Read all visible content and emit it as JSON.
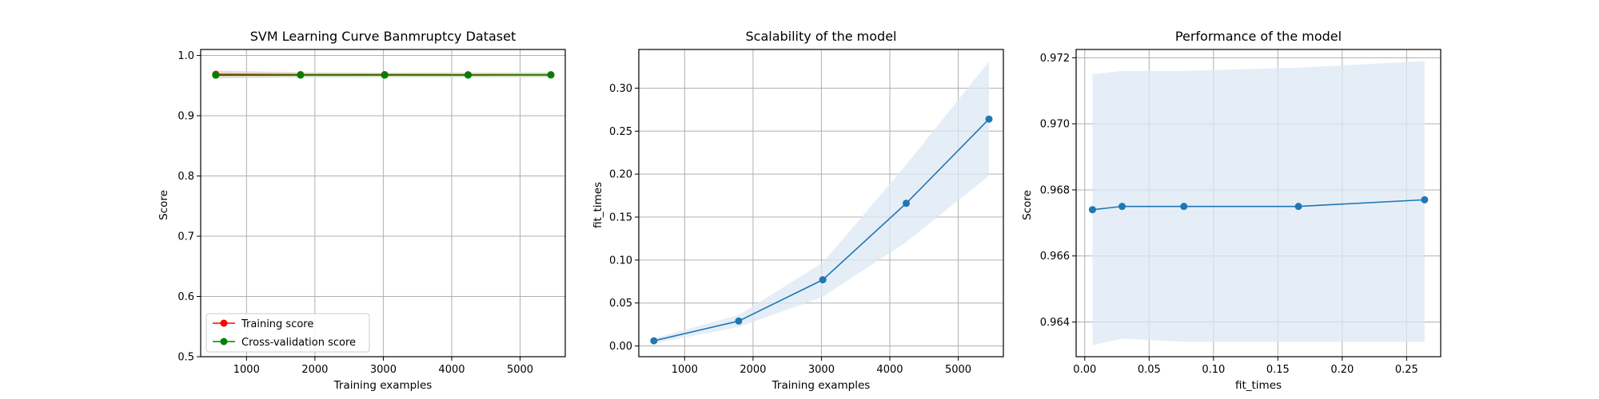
{
  "colors": {
    "training": "#ff0000",
    "cv": "#008000",
    "blue": "#1f77b4",
    "band_blue": "#dce8f4",
    "band_red": "#f7c8c8",
    "band_green": "#c4e3c4"
  },
  "chart_data": [
    {
      "type": "line",
      "title": "SVM Learning Curve Banmruptcy Dataset",
      "xlabel": "Training examples",
      "ylabel": "Score",
      "xlim": [
        330,
        5660
      ],
      "ylim": [
        0.5,
        1.01
      ],
      "xticks": [
        1000,
        2000,
        3000,
        4000,
        5000
      ],
      "xtick_labels": [
        "1000",
        "2000",
        "3000",
        "4000",
        "5000"
      ],
      "yticks": [
        0.5,
        0.6,
        0.7,
        0.8,
        0.9,
        1.0
      ],
      "ytick_labels": [
        "0.5",
        "0.6",
        "0.7",
        "0.8",
        "0.9",
        "1.0"
      ],
      "grid": true,
      "legend": "lower-left",
      "x": [
        550,
        1790,
        3020,
        4240,
        5450
      ],
      "series": [
        {
          "name": "Training score",
          "color": "training",
          "values": [
            0.9687,
            0.9682,
            0.9682,
            0.9681,
            0.9681
          ],
          "band_lower": [
            0.962,
            0.964,
            0.965,
            0.965,
            0.965
          ],
          "band_upper": [
            0.975,
            0.972,
            0.971,
            0.971,
            0.971
          ],
          "band_color": "band_red"
        },
        {
          "name": "Cross-validation score",
          "color": "cv",
          "values": [
            0.9674,
            0.9675,
            0.9675,
            0.9675,
            0.9677
          ],
          "band_lower": [
            0.9633,
            0.9635,
            0.9634,
            0.9634,
            0.9634
          ],
          "band_upper": [
            0.9715,
            0.9716,
            0.9716,
            0.9717,
            0.9719
          ],
          "band_color": "band_green"
        }
      ]
    },
    {
      "type": "line",
      "title": "Scalability of the model",
      "xlabel": "Training examples",
      "ylabel": "fit_times",
      "xlim": [
        330,
        5660
      ],
      "ylim": [
        -0.0125,
        0.345
      ],
      "xticks": [
        1000,
        2000,
        3000,
        4000,
        5000
      ],
      "xtick_labels": [
        "1000",
        "2000",
        "3000",
        "4000",
        "5000"
      ],
      "yticks": [
        0.0,
        0.05,
        0.1,
        0.15,
        0.2,
        0.25,
        0.3
      ],
      "ytick_labels": [
        "0.00",
        "0.05",
        "0.10",
        "0.15",
        "0.20",
        "0.25",
        "0.30"
      ],
      "grid": true,
      "x": [
        550,
        1790,
        3020,
        4240,
        5450
      ],
      "series": [
        {
          "color": "blue",
          "values": [
            0.006,
            0.029,
            0.077,
            0.166,
            0.264
          ],
          "band_lower": [
            0.003,
            0.022,
            0.057,
            0.121,
            0.198
          ],
          "band_upper": [
            0.009,
            0.036,
            0.097,
            0.211,
            0.331
          ],
          "band_color": "band_blue"
        }
      ]
    },
    {
      "type": "line",
      "title": "Performance of the model",
      "xlabel": "fit_times",
      "ylabel": "Score",
      "xlim": [
        -0.0067,
        0.2765
      ],
      "ylim": [
        0.96295,
        0.97225
      ],
      "xticks": [
        0.0,
        0.05,
        0.1,
        0.15,
        0.2,
        0.25
      ],
      "xtick_labels": [
        "0.00",
        "0.05",
        "0.10",
        "0.15",
        "0.20",
        "0.25"
      ],
      "yticks": [
        0.964,
        0.966,
        0.968,
        0.97,
        0.972
      ],
      "ytick_labels": [
        "0.964",
        "0.966",
        "0.968",
        "0.970",
        "0.972"
      ],
      "grid": true,
      "x": [
        0.006,
        0.029,
        0.077,
        0.166,
        0.264
      ],
      "series": [
        {
          "color": "blue",
          "values": [
            0.9674,
            0.9675,
            0.9675,
            0.9675,
            0.9677
          ],
          "band_lower": [
            0.9633,
            0.9635,
            0.9634,
            0.9634,
            0.9634
          ],
          "band_upper": [
            0.9715,
            0.9716,
            0.9716,
            0.9717,
            0.9719
          ],
          "band_color": "band_blue"
        }
      ]
    }
  ]
}
